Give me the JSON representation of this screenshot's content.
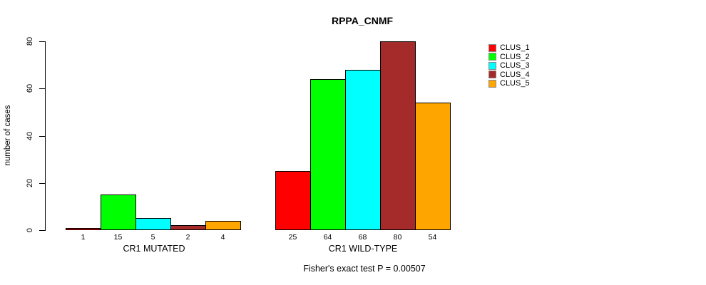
{
  "chart_data": {
    "type": "bar",
    "title": "RPPA_CNMF",
    "ylabel": "number of cases",
    "ylim": [
      0,
      80
    ],
    "yticks": [
      0,
      20,
      40,
      60,
      80
    ],
    "grid": false,
    "legend_position": "right",
    "categories": [
      "CR1 MUTATED",
      "CR1 WILD-TYPE"
    ],
    "series": [
      {
        "name": "CLUS_1",
        "color": "#FF0000",
        "values": [
          1,
          25
        ]
      },
      {
        "name": "CLUS_2",
        "color": "#00FF00",
        "values": [
          15,
          64
        ]
      },
      {
        "name": "CLUS_3",
        "color": "#00FFFF",
        "values": [
          5,
          68
        ]
      },
      {
        "name": "CLUS_4",
        "color": "#A52A2A",
        "values": [
          2,
          80
        ]
      },
      {
        "name": "CLUS_5",
        "color": "#FFA500",
        "values": [
          4,
          54
        ]
      }
    ],
    "bar_value_labels": [
      [
        1,
        15,
        5,
        2,
        4
      ],
      [
        25,
        64,
        68,
        80,
        54
      ]
    ],
    "footnote": "Fisher's exact test P = 0.00507",
    "axis_color": "#000000",
    "background_color": "#ffffff"
  }
}
